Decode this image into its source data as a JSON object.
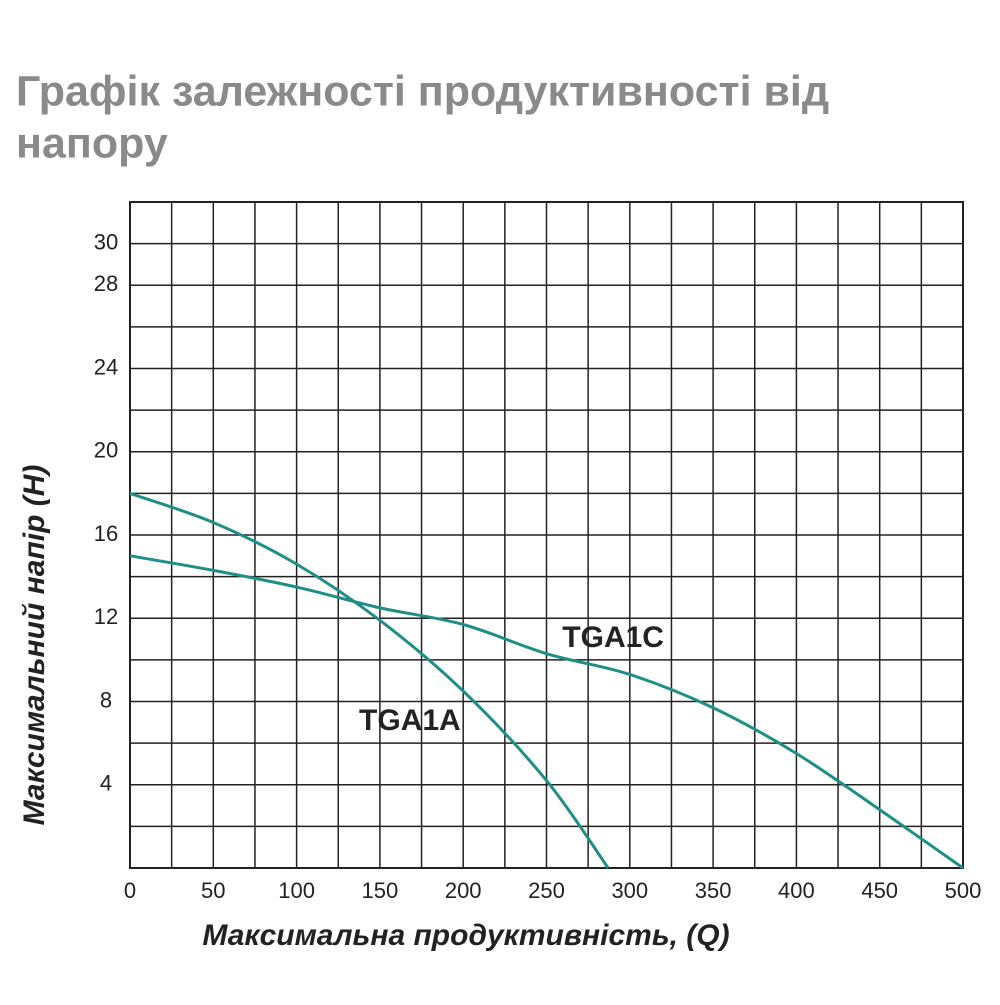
{
  "chart_data": {
    "type": "line",
    "title_lines": [
      "Графік залежності продуктивності від",
      "напору"
    ],
    "x_label": "Максимальна продуктивність, (Q)",
    "y_label": "Максимальний напір (Н)",
    "xlim": [
      0,
      500
    ],
    "ylim": [
      0,
      32
    ],
    "xticks": [
      0,
      50,
      100,
      150,
      200,
      250,
      300,
      350,
      400,
      450,
      500
    ],
    "yticks": [
      4,
      8,
      12,
      16,
      20,
      24,
      28,
      30
    ],
    "grid": true,
    "xgrid_step": 25,
    "ygrid_step": 2,
    "series": [
      {
        "name": "TGA1A",
        "color": "#1f8f86",
        "x": [
          0,
          50,
          100,
          150,
          200,
          250,
          287
        ],
        "values": [
          18,
          16.6,
          14.6,
          11.9,
          8.5,
          4.2,
          0
        ]
      },
      {
        "name": "TGA1C",
        "color": "#1f8f86",
        "x": [
          0,
          50,
          100,
          150,
          200,
          250,
          300,
          350,
          400,
          450,
          500
        ],
        "values": [
          15,
          14.3,
          13.5,
          12.5,
          11.7,
          10.3,
          9.3,
          7.7,
          5.5,
          2.8,
          0
        ]
      }
    ],
    "annotations": [
      {
        "text": "TGA1C",
        "x": 290,
        "y": 11
      },
      {
        "text": "TGA1A",
        "x": 168,
        "y": 7
      }
    ]
  }
}
